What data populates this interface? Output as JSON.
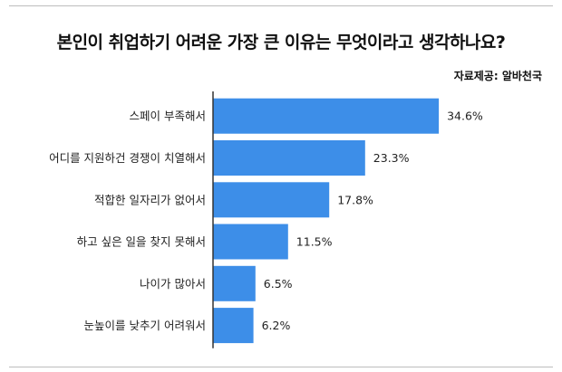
{
  "title": "본인이 취업하기 어려운 가장 큰 이유는 무엇이라고 생각하나요?",
  "source": "자료제공: 알바천국",
  "colors": {
    "bar": "#3d8ee8",
    "axis": "#333333",
    "text": "#222222"
  },
  "chart_data": {
    "type": "bar",
    "orientation": "horizontal",
    "title": "본인이 취업하기 어려운 가장 큰 이유는 무엇이라고 생각하나요?",
    "categories": [
      "스페이 부족해서",
      "어디를 지원하건 경쟁이 치열해서",
      "적합한 일자리가 없어서",
      "하고 싶은 일을 찾지 못해서",
      "나이가 많아서",
      "눈높이를 낮추기 어려워서"
    ],
    "values": [
      34.6,
      23.3,
      17.8,
      11.5,
      6.5,
      6.2
    ],
    "value_labels": [
      "34.6%",
      "23.3%",
      "17.8%",
      "11.5%",
      "6.5%",
      "6.2%"
    ],
    "unit": "%",
    "xlim": [
      0,
      40
    ],
    "grid": false,
    "legend": "none"
  }
}
